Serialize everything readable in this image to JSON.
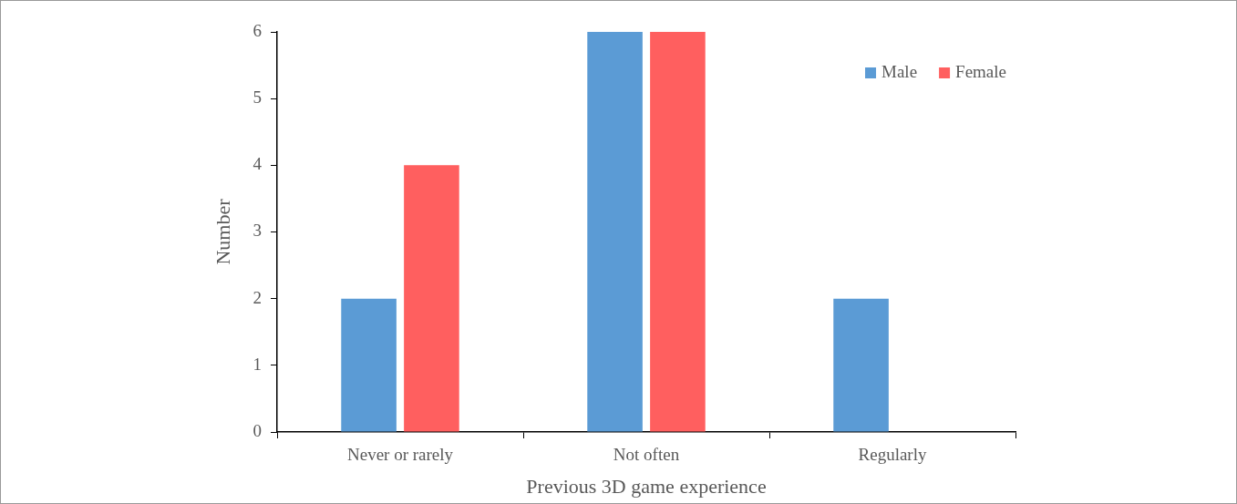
{
  "chart_data": {
    "type": "bar",
    "xlabel": "Previous 3D game experience",
    "ylabel": "Number",
    "categories": [
      "Never or rarely",
      "Not often",
      "Regularly"
    ],
    "series": [
      {
        "name": "Male",
        "color": "#5b9bd5",
        "values": [
          2,
          6,
          2
        ]
      },
      {
        "name": "Female",
        "color": "#ff5f5f",
        "values": [
          4,
          6,
          0
        ]
      }
    ],
    "ylim": [
      0,
      6
    ],
    "yticks": [
      0,
      1,
      2,
      3,
      4,
      5,
      6
    ],
    "grid": false,
    "legend": "top right"
  }
}
